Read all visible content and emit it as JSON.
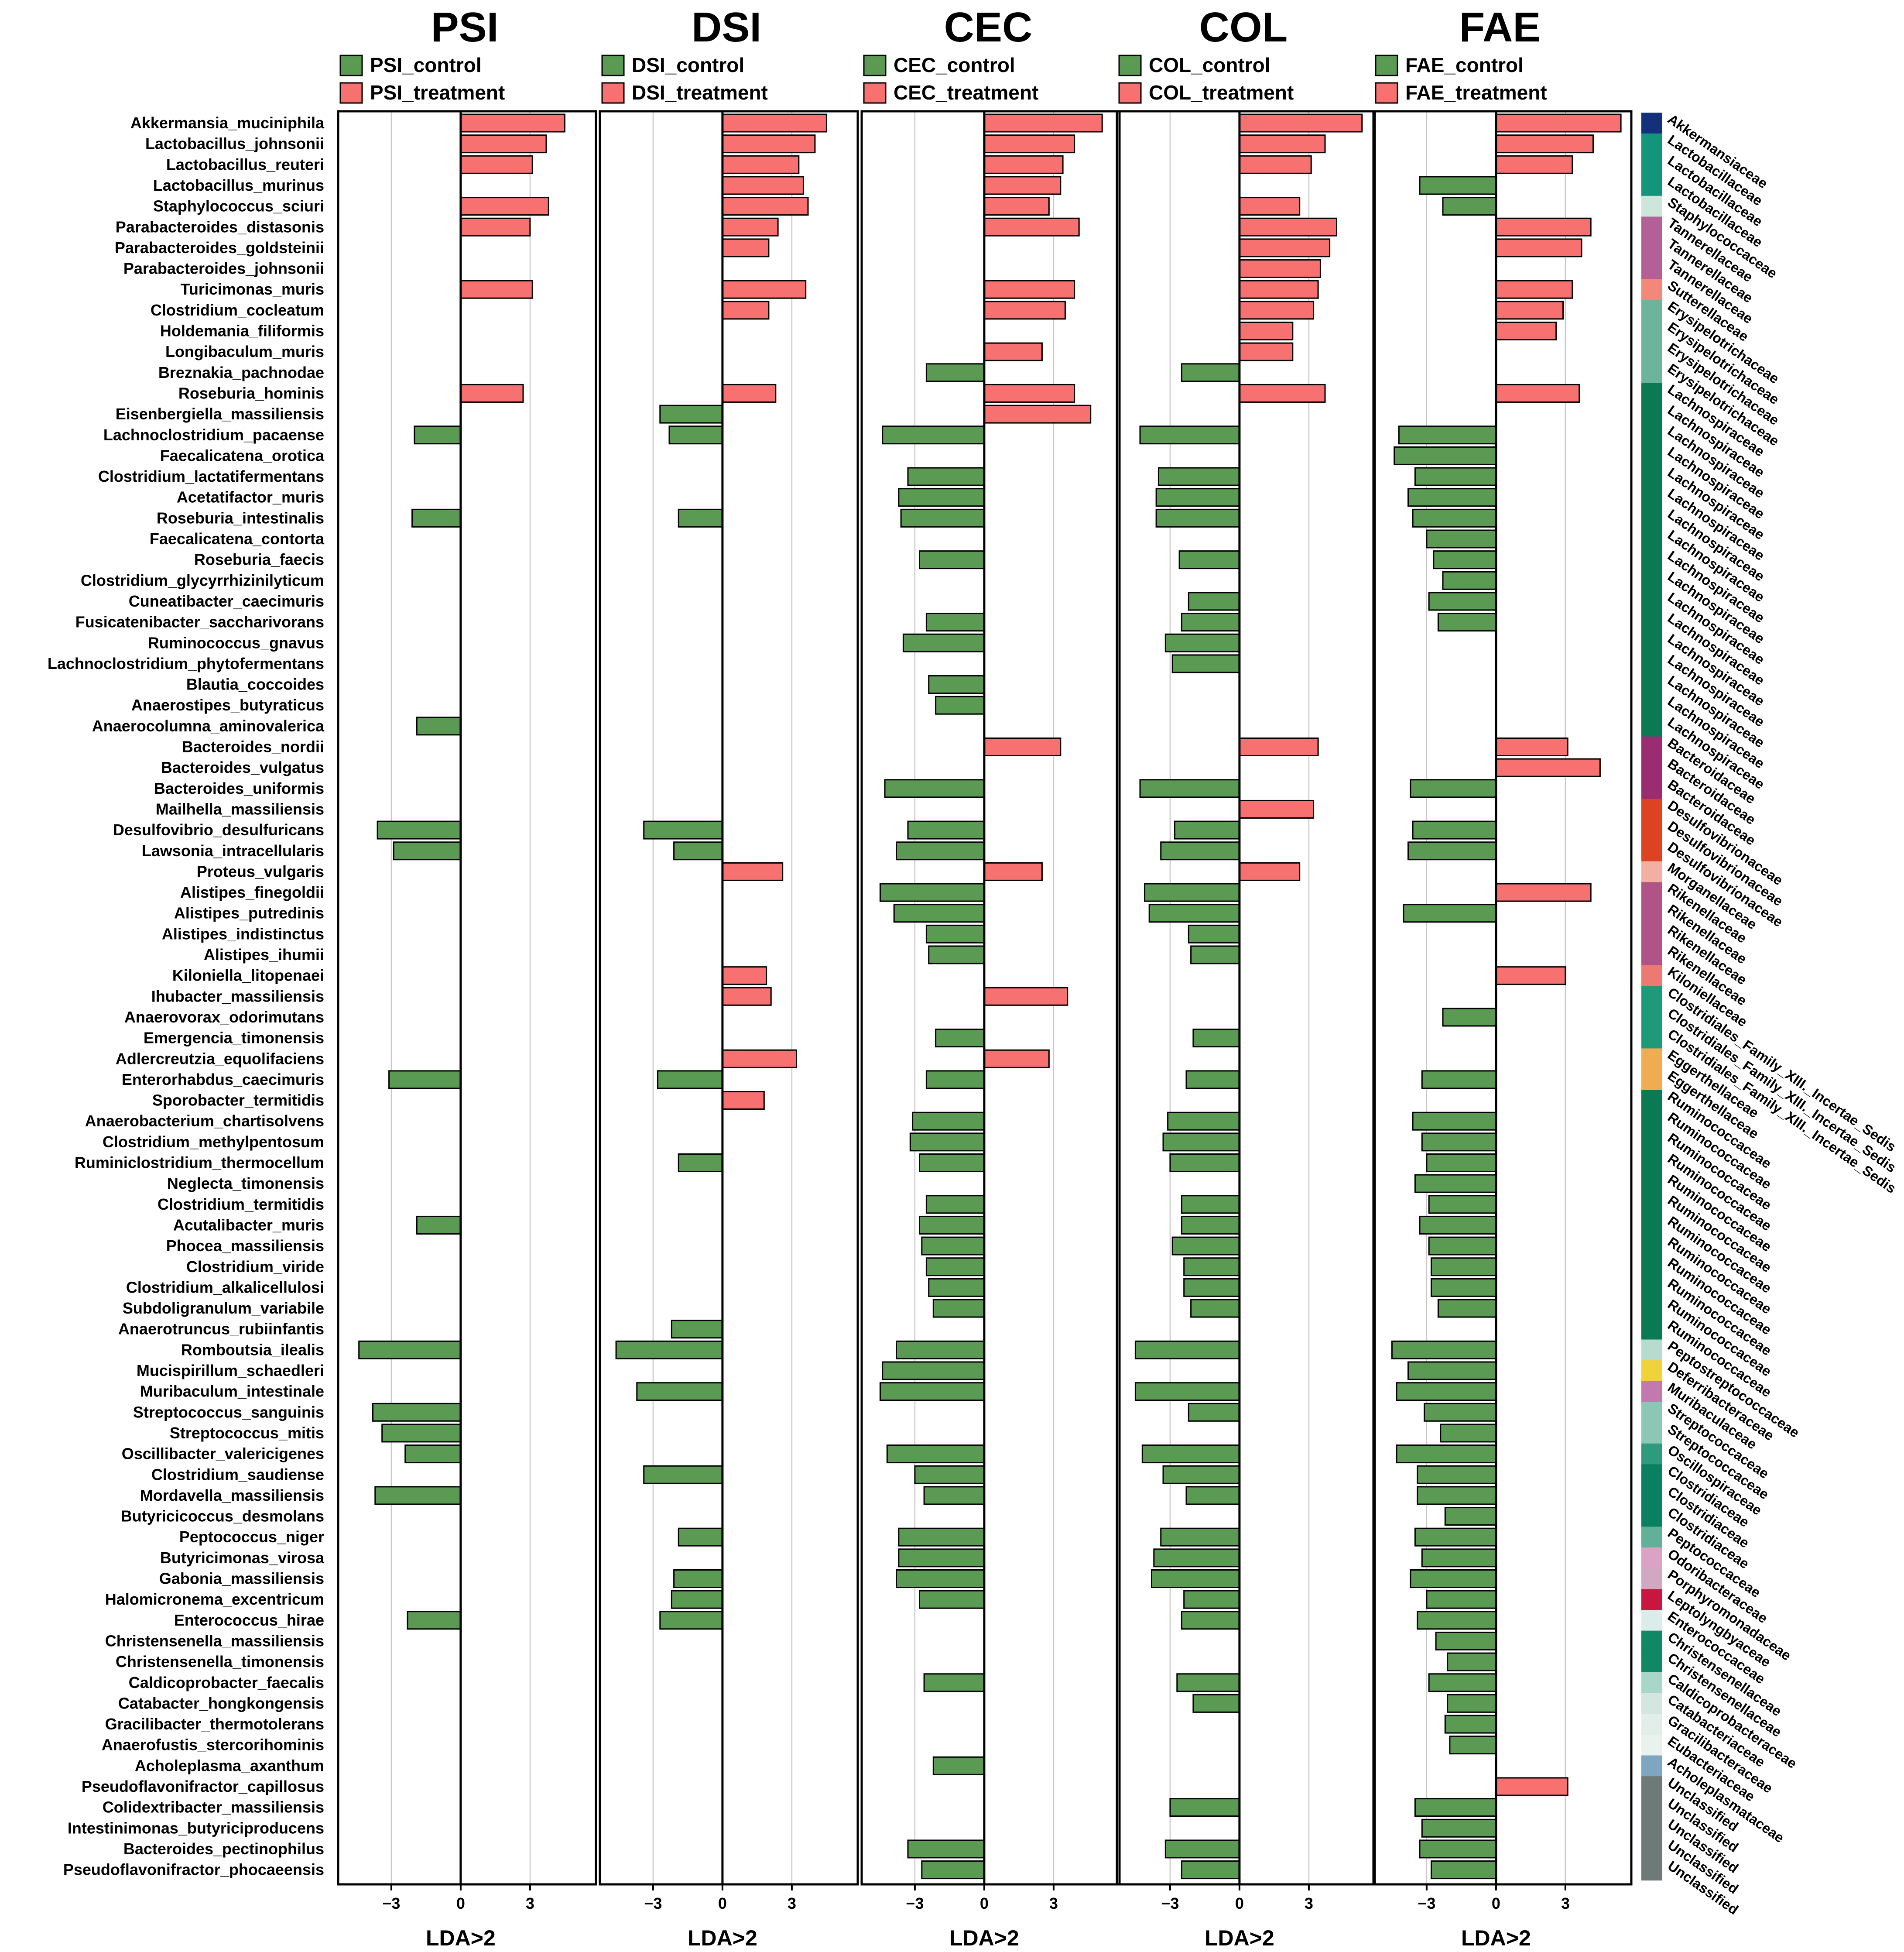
{
  "chart_data": {
    "type": "bar",
    "orientation": "horizontal",
    "value_ticks": [
      -3,
      0,
      3
    ],
    "xlim": [
      -5.3,
      5.9
    ],
    "xlabel": "LDA>2",
    "grid": true,
    "legend_position": "top",
    "colors": {
      "control": "#5a9a52",
      "treatment": "#f87171"
    },
    "species": [
      "Akkermansia_muciniphila",
      "Lactobacillus_johnsonii",
      "Lactobacillus_reuteri",
      "Lactobacillus_murinus",
      "Staphylococcus_sciuri",
      "Parabacteroides_distasonis",
      "Parabacteroides_goldsteinii",
      "Parabacteroides_johnsonii",
      "Turicimonas_muris",
      "Clostridium_cocleatum",
      "Holdemania_filiformis",
      "Longibaculum_muris",
      "Breznakia_pachnodae",
      "Roseburia_hominis",
      "Eisenbergiella_massiliensis",
      "Lachnoclostridium_pacaense",
      "Faecalicatena_orotica",
      "Clostridium_lactatifermentans",
      "Acetatifactor_muris",
      "Roseburia_intestinalis",
      "Faecalicatena_contorta",
      "Roseburia_faecis",
      "Clostridium_glycyrrhizinilyticum",
      "Cuneatibacter_caecimuris",
      "Fusicatenibacter_saccharivorans",
      "Ruminococcus_gnavus",
      "Lachnoclostridium_phytofermentans",
      "Blautia_coccoides",
      "Anaerostipes_butyraticus",
      "Anaerocolumna_aminovalerica",
      "Bacteroides_nordii",
      "Bacteroides_vulgatus",
      "Bacteroides_uniformis",
      "Mailhella_massiliensis",
      "Desulfovibrio_desulfuricans",
      "Lawsonia_intracellularis",
      "Proteus_vulgaris",
      "Alistipes_finegoldii",
      "Alistipes_putredinis",
      "Alistipes_indistinctus",
      "Alistipes_ihumii",
      "Kiloniella_litopenaei",
      "Ihubacter_massiliensis",
      "Anaerovorax_odorimutans",
      "Emergencia_timonensis",
      "Adlercreutzia_equolifaciens",
      "Enterorhabdus_caecimuris",
      "Sporobacter_termitidis",
      "Anaerobacterium_chartisolvens",
      "Clostridium_methylpentosum",
      "Ruminiclostridium_thermocellum",
      "Neglecta_timonensis",
      "Clostridium_termitidis",
      "Acutalibacter_muris",
      "Phocea_massiliensis",
      "Clostridium_viride",
      "Clostridium_alkalicellulosi",
      "Subdoligranulum_variabile",
      "Anaerotruncus_rubiinfantis",
      "Romboutsia_ilealis",
      "Mucispirillum_schaedleri",
      "Muribaculum_intestinale",
      "Streptococcus_sanguinis",
      "Streptococcus_mitis",
      "Oscillibacter_valericigenes",
      "Clostridium_saudiense",
      "Mordavella_massiliensis",
      "Butyricicoccus_desmolans",
      "Peptococcus_niger",
      "Butyricimonas_virosa",
      "Gabonia_massiliensis",
      "Halomicronema_excentricum",
      "Enterococcus_hirae",
      "Christensenella_massiliensis",
      "Christensenella_timonensis",
      "Caldicoprobacter_faecalis",
      "Catabacter_hongkongensis",
      "Gracilibacter_thermotolerans",
      "Anaerofustis_stercorihominis",
      "Acholeplasma_axanthum",
      "Pseudoflavonifractor_capillosus",
      "Colidextribacter_massiliensis",
      "Intestinimonas_butyriciproducens",
      "Bacteroides_pectinophilus",
      "Pseudoflavonifractor_phocaeensis"
    ],
    "families": [
      "Akkermansiaceae",
      "Lactobacillaceae",
      "Lactobacillaceae",
      "Lactobacillaceae",
      "Staphylococcaceae",
      "Tannerellaceae",
      "Tannerellaceae",
      "Tannerellaceae",
      "Sutterellaceae",
      "Erysipelotrichaceae",
      "Erysipelotrichaceae",
      "Erysipelotrichaceae",
      "Erysipelotrichaceae",
      "Lachnospiraceae",
      "Lachnospiraceae",
      "Lachnospiraceae",
      "Lachnospiraceae",
      "Lachnospiraceae",
      "Lachnospiraceae",
      "Lachnospiraceae",
      "Lachnospiraceae",
      "Lachnospiraceae",
      "Lachnospiraceae",
      "Lachnospiraceae",
      "Lachnospiraceae",
      "Lachnospiraceae",
      "Lachnospiraceae",
      "Lachnospiraceae",
      "Lachnospiraceae",
      "Lachnospiraceae",
      "Bacteroidaceae",
      "Bacteroidaceae",
      "Bacteroidaceae",
      "Desulfovibrionaceae",
      "Desulfovibrionaceae",
      "Desulfovibrionaceae",
      "Morganellaceae",
      "Rikenellaceae",
      "Rikenellaceae",
      "Rikenellaceae",
      "Rikenellaceae",
      "Kiloniellaceae",
      "Clostridiales_Family_XIII._Incertae_Sedis",
      "Clostridiales_Family_XIII._Incertae_Sedis",
      "Clostridiales_Family_XIII._Incertae_Sedis",
      "Eggerthellaceae",
      "Eggerthellaceae",
      "Ruminococcaceae",
      "Ruminococcaceae",
      "Ruminococcaceae",
      "Ruminococcaceae",
      "Ruminococcaceae",
      "Ruminococcaceae",
      "Ruminococcaceae",
      "Ruminococcaceae",
      "Ruminococcaceae",
      "Ruminococcaceae",
      "Ruminococcaceae",
      "Ruminococcaceae",
      "Peptostreptococcaceae",
      "Deferribacteraceae",
      "Muribaculaceae",
      "Streptococcaceae",
      "Streptococcaceae",
      "Oscillospiraceae",
      "Clostridiaceae",
      "Clostridiaceae",
      "Clostridiaceae",
      "Peptococcaceae",
      "Odoribacteraceae",
      "Porphyromonadaceae",
      "Leptolyngbyaceae",
      "Enterococcaceae",
      "Christensenellaceae",
      "Christensenellaceae",
      "Caldicoprobacteraceae",
      "Catabacteriaceae",
      "Gracilibacteraceae",
      "Eubacteriaceae",
      "Acholeplasmataceae",
      "Unclassified",
      "Unclassified",
      "Unclassified",
      "Unclassified",
      "Unclassified"
    ],
    "family_colors": {
      "Akkermansiaceae": "#14307a",
      "Lactobacillaceae": "#14957a",
      "Staphylococcaceae": "#cde6dc",
      "Tannerellaceae": "#b26096",
      "Sutterellaceae": "#f2877a",
      "Erysipelotrichaceae": "#6cb49c",
      "Lachnospiraceae": "#0b7a52",
      "Bacteroidaceae": "#9a2c72",
      "Desulfovibrionaceae": "#dd4320",
      "Morganellaceae": "#f2b0a2",
      "Rikenellaceae": "#b05488",
      "Kiloniellaceae": "#ec7a72",
      "Clostridiales_Family_XIII._Incertae_Sedis": "#1f9a78",
      "Eggerthellaceae": "#f0ac52",
      "Ruminococcaceae": "#0a7a52",
      "Peptostreptococcaceae": "#b6dcd0",
      "Deferribacteraceae": "#f0d23a",
      "Muribaculaceae": "#c27aae",
      "Streptococcaceae": "#8cc6b4",
      "Oscillospiraceae": "#2f9a7c",
      "Clostridiaceae": "#0b8060",
      "Peptococcaceae": "#62b09a",
      "Odoribacteraceae": "#daa2c4",
      "Porphyromonadaceae": "#d0a8c2",
      "Leptolyngbyaceae": "#c8163e",
      "Enterococcaceae": "#dcecea",
      "Christensenellaceae": "#118864",
      "Caldicoprobacteraceae": "#a8d6c8",
      "Catabacteriaceae": "#d4e6e0",
      "Gracilibacteraceae": "#e2eeea",
      "Eubacteriaceae": "#eaf2ee",
      "Acholeplasmataceae": "#7ea6c0",
      "Unclassified": "#6e7a78"
    },
    "panels": [
      {
        "title": "PSI",
        "legend": [
          "PSI_control",
          "PSI_treatment"
        ],
        "values": [
          4.5,
          3.7,
          3.1,
          null,
          3.8,
          3.0,
          null,
          null,
          3.1,
          null,
          null,
          null,
          null,
          2.7,
          null,
          -2.0,
          null,
          null,
          null,
          -2.1,
          null,
          null,
          null,
          null,
          null,
          null,
          null,
          null,
          null,
          -1.9,
          null,
          null,
          null,
          null,
          -3.6,
          -2.9,
          null,
          null,
          null,
          null,
          null,
          null,
          null,
          null,
          null,
          null,
          -3.1,
          null,
          null,
          null,
          null,
          null,
          null,
          -1.9,
          null,
          null,
          null,
          null,
          null,
          -4.4,
          null,
          null,
          -3.8,
          -3.4,
          -2.4,
          null,
          -3.7,
          null,
          null,
          null,
          null,
          null,
          -2.3,
          null,
          null,
          null,
          null,
          null,
          null,
          null,
          null,
          null,
          null,
          null,
          null,
          null
        ]
      },
      {
        "title": "DSI",
        "legend": [
          "DSI_control",
          "DSI_treatment"
        ],
        "values": [
          4.5,
          4.0,
          3.3,
          3.5,
          3.7,
          2.4,
          2.0,
          null,
          3.6,
          2.0,
          null,
          null,
          null,
          2.3,
          -2.7,
          -2.3,
          null,
          null,
          null,
          -1.9,
          null,
          null,
          null,
          null,
          null,
          null,
          null,
          null,
          null,
          null,
          null,
          null,
          null,
          null,
          -3.4,
          -2.1,
          2.6,
          null,
          null,
          null,
          null,
          1.9,
          2.1,
          null,
          null,
          3.2,
          -2.8,
          1.8,
          null,
          null,
          -1.9,
          null,
          null,
          null,
          null,
          null,
          null,
          null,
          -2.2,
          -4.6,
          null,
          -3.7,
          null,
          null,
          null,
          -3.4,
          null,
          null,
          -1.9,
          null,
          -2.1,
          -2.2,
          -2.7,
          null,
          null,
          null,
          null,
          null,
          null,
          null,
          null,
          null,
          null,
          null,
          null
        ]
      },
      {
        "title": "CEC",
        "legend": [
          "CEC_control",
          "CEC_treatment"
        ],
        "values": [
          5.1,
          3.9,
          3.4,
          3.3,
          2.8,
          4.1,
          null,
          null,
          3.9,
          3.5,
          null,
          2.5,
          -2.5,
          3.9,
          4.6,
          -4.4,
          null,
          -3.3,
          -3.7,
          -3.6,
          null,
          -2.8,
          null,
          null,
          -2.5,
          -3.5,
          null,
          -2.4,
          -2.1,
          null,
          3.3,
          null,
          -4.3,
          null,
          -3.3,
          -3.8,
          2.5,
          -4.5,
          -3.9,
          -2.5,
          -2.4,
          null,
          3.6,
          null,
          -2.1,
          2.8,
          -2.5,
          null,
          -3.1,
          -3.2,
          -2.8,
          null,
          -2.5,
          -2.8,
          -2.7,
          -2.5,
          -2.4,
          -2.2,
          null,
          -3.8,
          -4.4,
          -4.5,
          null,
          null,
          -4.2,
          -3.0,
          -2.6,
          null,
          -3.7,
          -3.7,
          -3.8,
          -2.8,
          null,
          null,
          null,
          -2.6,
          null,
          null,
          null,
          -2.2,
          null,
          null,
          null,
          -3.3,
          -2.7
        ]
      },
      {
        "title": "COL",
        "legend": [
          "COL_control",
          "COL_treatment"
        ],
        "values": [
          5.3,
          3.7,
          3.1,
          null,
          2.6,
          4.2,
          3.9,
          3.5,
          3.4,
          3.2,
          2.3,
          2.3,
          -2.5,
          3.7,
          null,
          -4.3,
          null,
          -3.5,
          -3.6,
          -3.6,
          null,
          -2.6,
          null,
          -2.2,
          -2.5,
          -3.2,
          -2.9,
          null,
          null,
          null,
          3.4,
          null,
          -4.3,
          3.2,
          -2.8,
          -3.4,
          2.6,
          -4.1,
          -3.9,
          -2.2,
          -2.1,
          null,
          null,
          null,
          -2.0,
          null,
          -2.3,
          null,
          -3.1,
          -3.3,
          -3.0,
          null,
          -2.5,
          -2.5,
          -2.9,
          -2.4,
          -2.4,
          -2.1,
          null,
          -4.5,
          null,
          -4.5,
          -2.2,
          null,
          -4.2,
          -3.3,
          -2.3,
          null,
          -3.4,
          -3.7,
          -3.8,
          -2.4,
          -2.5,
          null,
          null,
          -2.7,
          -2.0,
          null,
          null,
          null,
          null,
          -3.0,
          null,
          -3.2,
          -2.5
        ]
      },
      {
        "title": "FAE",
        "legend": [
          "FAE_control",
          "FAE_treatment"
        ],
        "values": [
          5.4,
          4.2,
          3.3,
          -3.3,
          -2.3,
          4.1,
          3.7,
          null,
          3.3,
          2.9,
          2.6,
          null,
          null,
          3.6,
          null,
          -4.2,
          -4.4,
          -3.5,
          -3.8,
          -3.6,
          -3.0,
          -2.7,
          -2.3,
          -2.9,
          -2.5,
          null,
          null,
          null,
          null,
          null,
          3.1,
          4.5,
          -3.7,
          null,
          -3.6,
          -3.8,
          null,
          4.1,
          -4.0,
          null,
          null,
          3.0,
          null,
          -2.3,
          null,
          null,
          -3.2,
          null,
          -3.6,
          -3.2,
          -3.0,
          -3.5,
          -2.9,
          -3.3,
          -2.9,
          -2.8,
          -2.8,
          -2.5,
          null,
          -4.5,
          -3.8,
          -4.3,
          -3.1,
          -2.4,
          -4.3,
          -3.4,
          -3.4,
          -2.2,
          -3.5,
          -3.2,
          -3.7,
          -3.0,
          -3.4,
          -2.6,
          -2.1,
          -2.9,
          -2.1,
          -2.2,
          -2.0,
          null,
          3.1,
          -3.5,
          -3.2,
          -3.3,
          -2.8
        ]
      }
    ]
  }
}
